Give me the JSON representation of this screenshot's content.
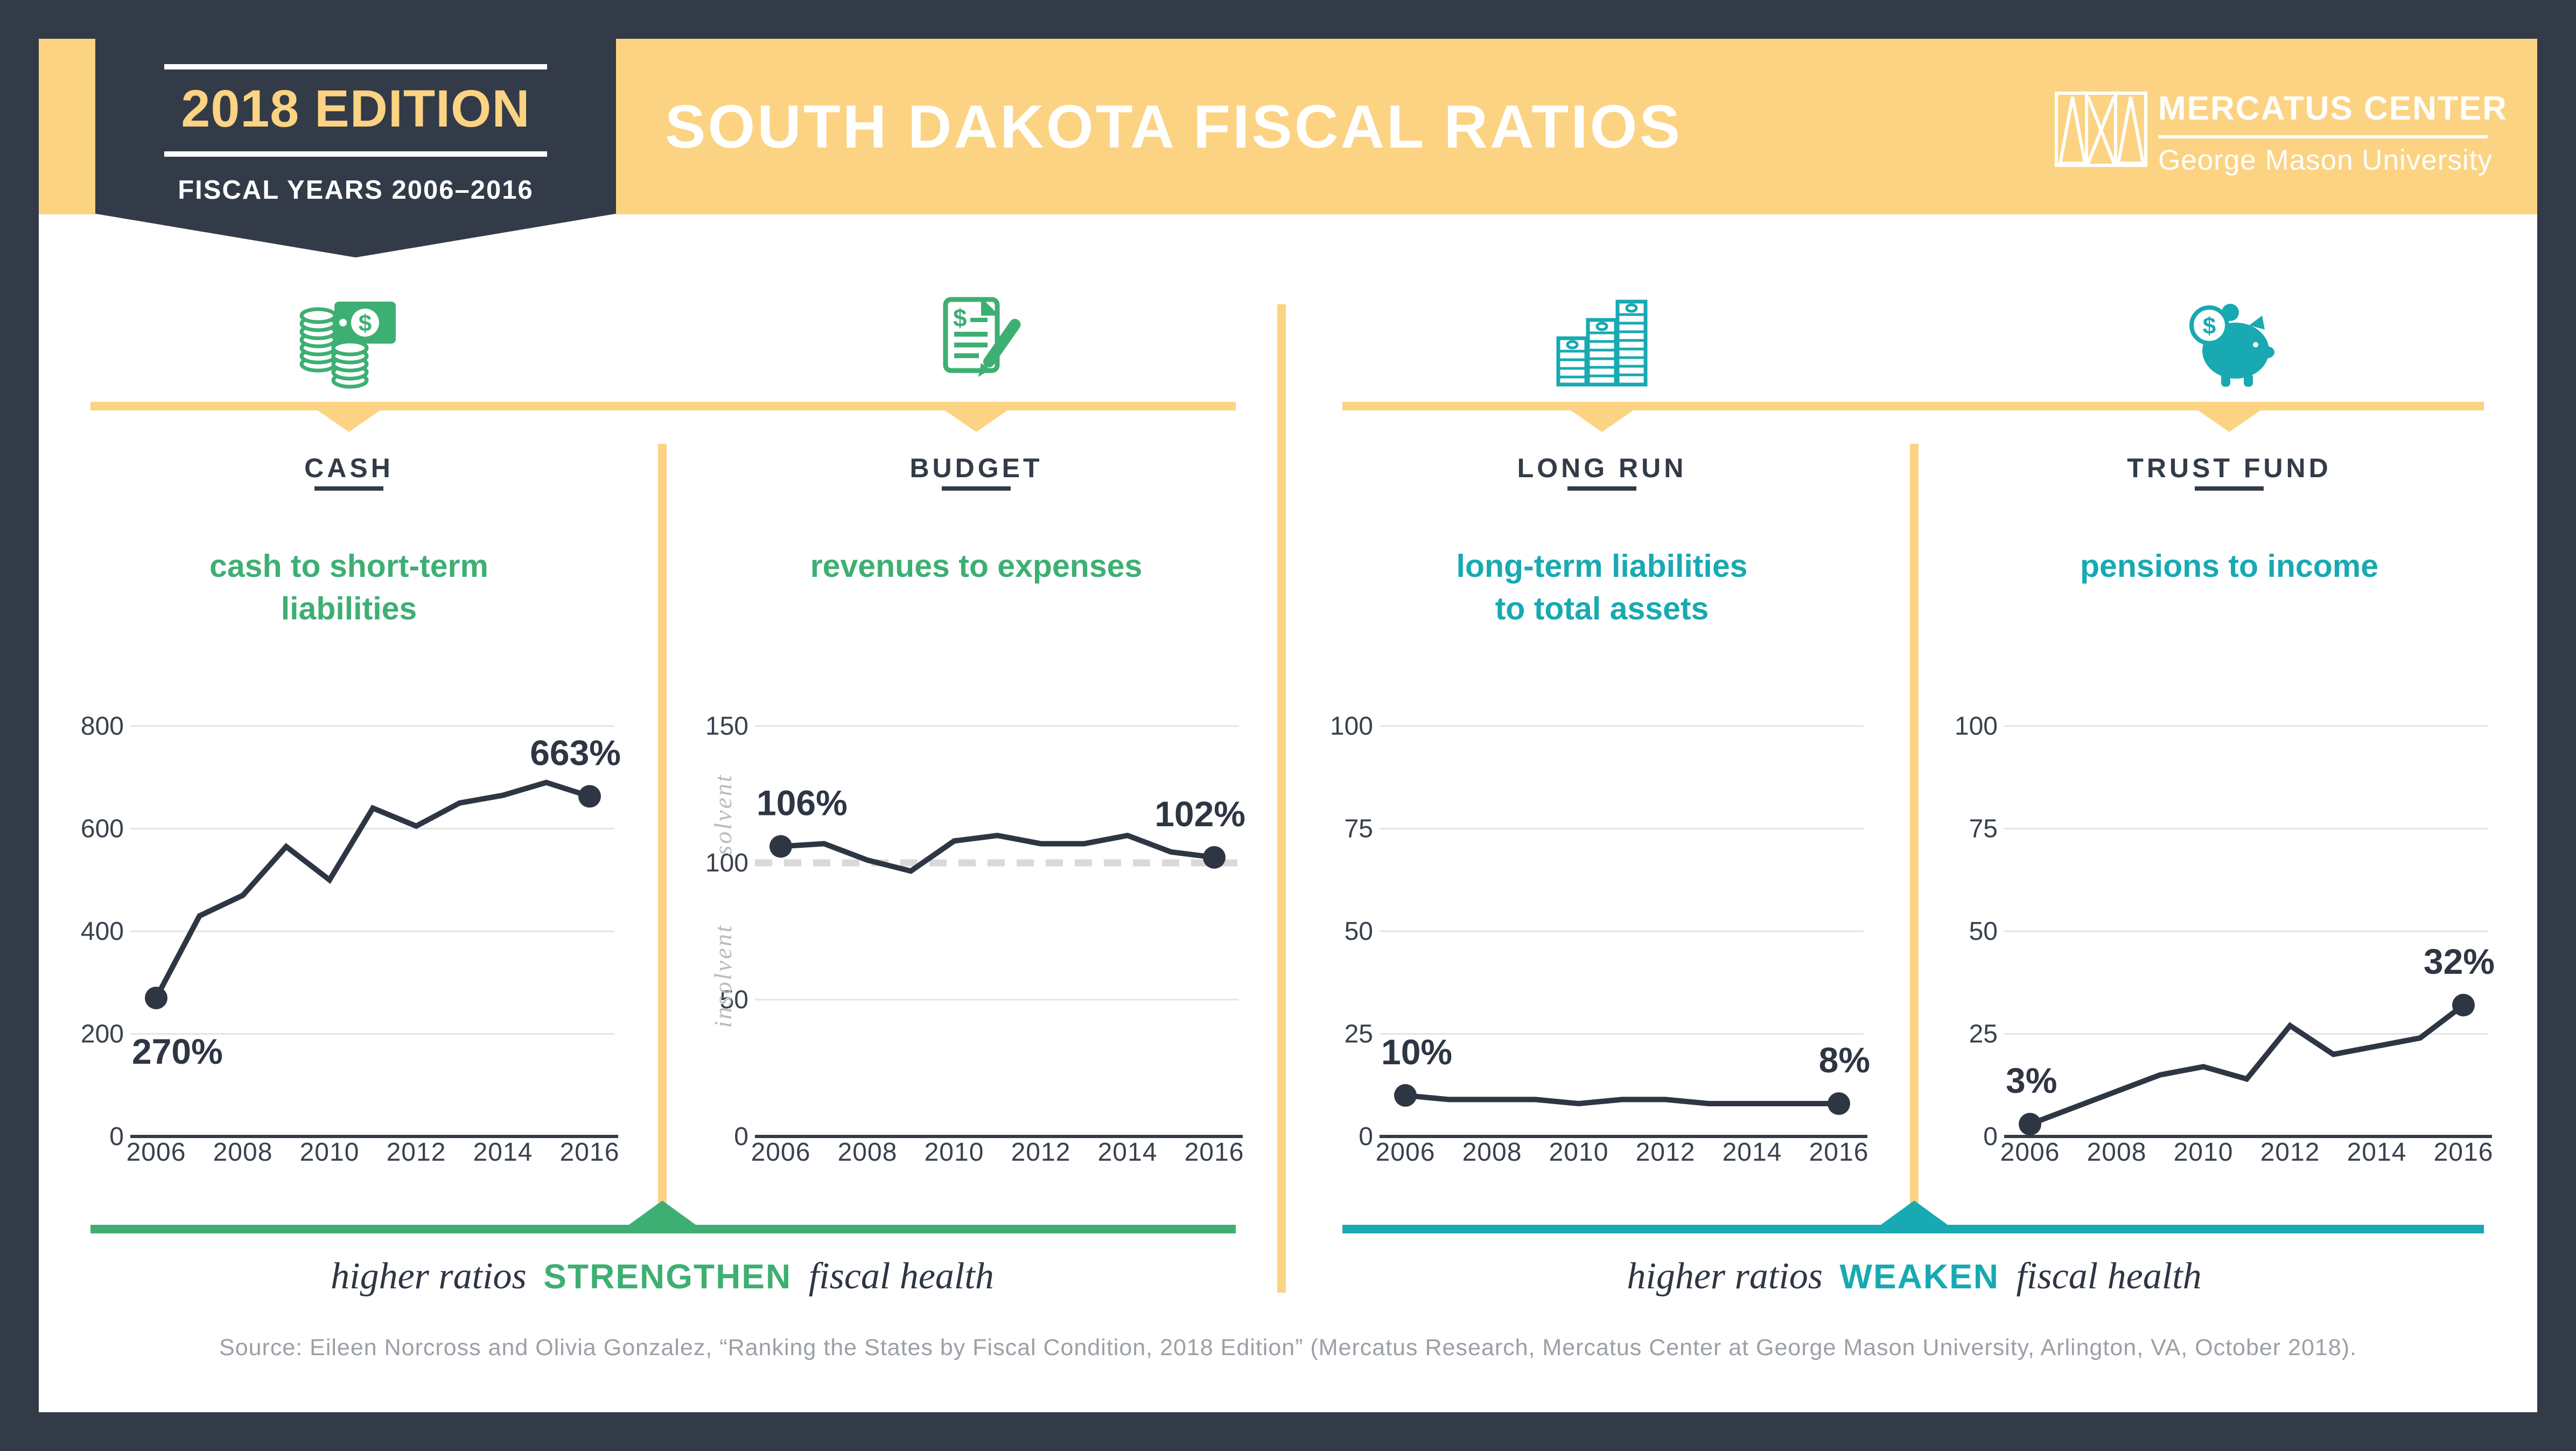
{
  "header": {
    "edition": "2018 EDITION",
    "fiscal_years": "FISCAL YEARS 2006–2016",
    "title": "SOUTH DAKOTA FISCAL RATIOS",
    "logo": {
      "line1": "MERCATUS CENTER",
      "line2": "George Mason University"
    }
  },
  "colors": {
    "navy": "#333B48",
    "yellow": "#FBD383",
    "green": "#3EAF73",
    "teal": "#18A9B2",
    "grid": "#E4E4E4",
    "dashed_line": "#D9D9D9",
    "source_gray": "#9BA0A6"
  },
  "sections": [
    {
      "title": "CASH",
      "subtitle_lines": [
        "cash to short-term",
        "liabilities"
      ],
      "accent": "#3EAF73"
    },
    {
      "title": "BUDGET",
      "subtitle_lines": [
        "revenues to expenses"
      ],
      "accent": "#3EAF73"
    },
    {
      "title": "LONG RUN",
      "subtitle_lines": [
        "long-term liabilities",
        "to total assets"
      ],
      "accent": "#18A9B2"
    },
    {
      "title": "TRUST FUND",
      "subtitle_lines": [
        "pensions to income"
      ],
      "accent": "#18A9B2"
    }
  ],
  "chart_data": [
    {
      "type": "line",
      "section": "CASH",
      "title": "cash to short-term liabilities",
      "x": [
        2006,
        2007,
        2008,
        2009,
        2010,
        2011,
        2012,
        2013,
        2014,
        2015,
        2016
      ],
      "values": [
        270,
        430,
        470,
        565,
        500,
        640,
        605,
        650,
        665,
        690,
        663
      ],
      "ylim": [
        0,
        800
      ],
      "yticks": [
        0,
        200,
        400,
        600,
        800
      ],
      "xticks": [
        2006,
        2008,
        2010,
        2012,
        2014,
        2016
      ],
      "start_label": "270%",
      "end_label": "663%",
      "start_label_position": "below",
      "grid": true,
      "legend": "none"
    },
    {
      "type": "line",
      "section": "BUDGET",
      "title": "revenues to expenses",
      "x": [
        2006,
        2007,
        2008,
        2009,
        2010,
        2011,
        2012,
        2013,
        2014,
        2015,
        2016
      ],
      "values": [
        106,
        107,
        101,
        97,
        108,
        110,
        107,
        107,
        110,
        104,
        102
      ],
      "ylim": [
        0,
        150
      ],
      "yticks": [
        0,
        50,
        100,
        150
      ],
      "xticks": [
        2006,
        2008,
        2010,
        2012,
        2014,
        2016
      ],
      "start_label": "106%",
      "end_label": "102%",
      "start_label_position": "above",
      "dashed_at": 100,
      "annotations": [
        "solvent",
        "insolvent"
      ],
      "grid": true,
      "legend": "none"
    },
    {
      "type": "line",
      "section": "LONG RUN",
      "title": "long-term liabilities to total assets",
      "x": [
        2006,
        2007,
        2008,
        2009,
        2010,
        2011,
        2012,
        2013,
        2014,
        2015,
        2016
      ],
      "values": [
        10,
        9,
        9,
        9,
        8,
        9,
        9,
        8,
        8,
        8,
        8
      ],
      "ylim": [
        0,
        100
      ],
      "yticks": [
        0,
        25,
        50,
        75,
        100
      ],
      "xticks": [
        2006,
        2008,
        2010,
        2012,
        2014,
        2016
      ],
      "start_label": "10%",
      "end_label": "8%",
      "start_label_position": "above",
      "grid": true,
      "legend": "none"
    },
    {
      "type": "line",
      "section": "TRUST FUND",
      "title": "pensions to income",
      "x": [
        2006,
        2007,
        2008,
        2009,
        2010,
        2011,
        2012,
        2013,
        2014,
        2015,
        2016
      ],
      "values": [
        3,
        7,
        11,
        15,
        17,
        14,
        27,
        20,
        22,
        24,
        32
      ],
      "ylim": [
        0,
        100
      ],
      "yticks": [
        0,
        25,
        50,
        75,
        100
      ],
      "xticks": [
        2006,
        2008,
        2010,
        2012,
        2014,
        2016
      ],
      "start_label": "3%",
      "end_label": "32%",
      "start_label_position": "above",
      "grid": true,
      "legend": "none"
    }
  ],
  "footer": {
    "left": {
      "pre": "higher ratios",
      "em": "STRENGTHEN",
      "post": "fiscal health"
    },
    "right": {
      "pre": "higher ratios",
      "em": "WEAKEN",
      "post": "fiscal health"
    }
  },
  "source": "Source: Eileen Norcross and Olivia Gonzalez, “Ranking the States by Fiscal Condition, 2018 Edition” (Mercatus Research, Mercatus Center at George Mason University, Arlington, VA, October 2018)."
}
